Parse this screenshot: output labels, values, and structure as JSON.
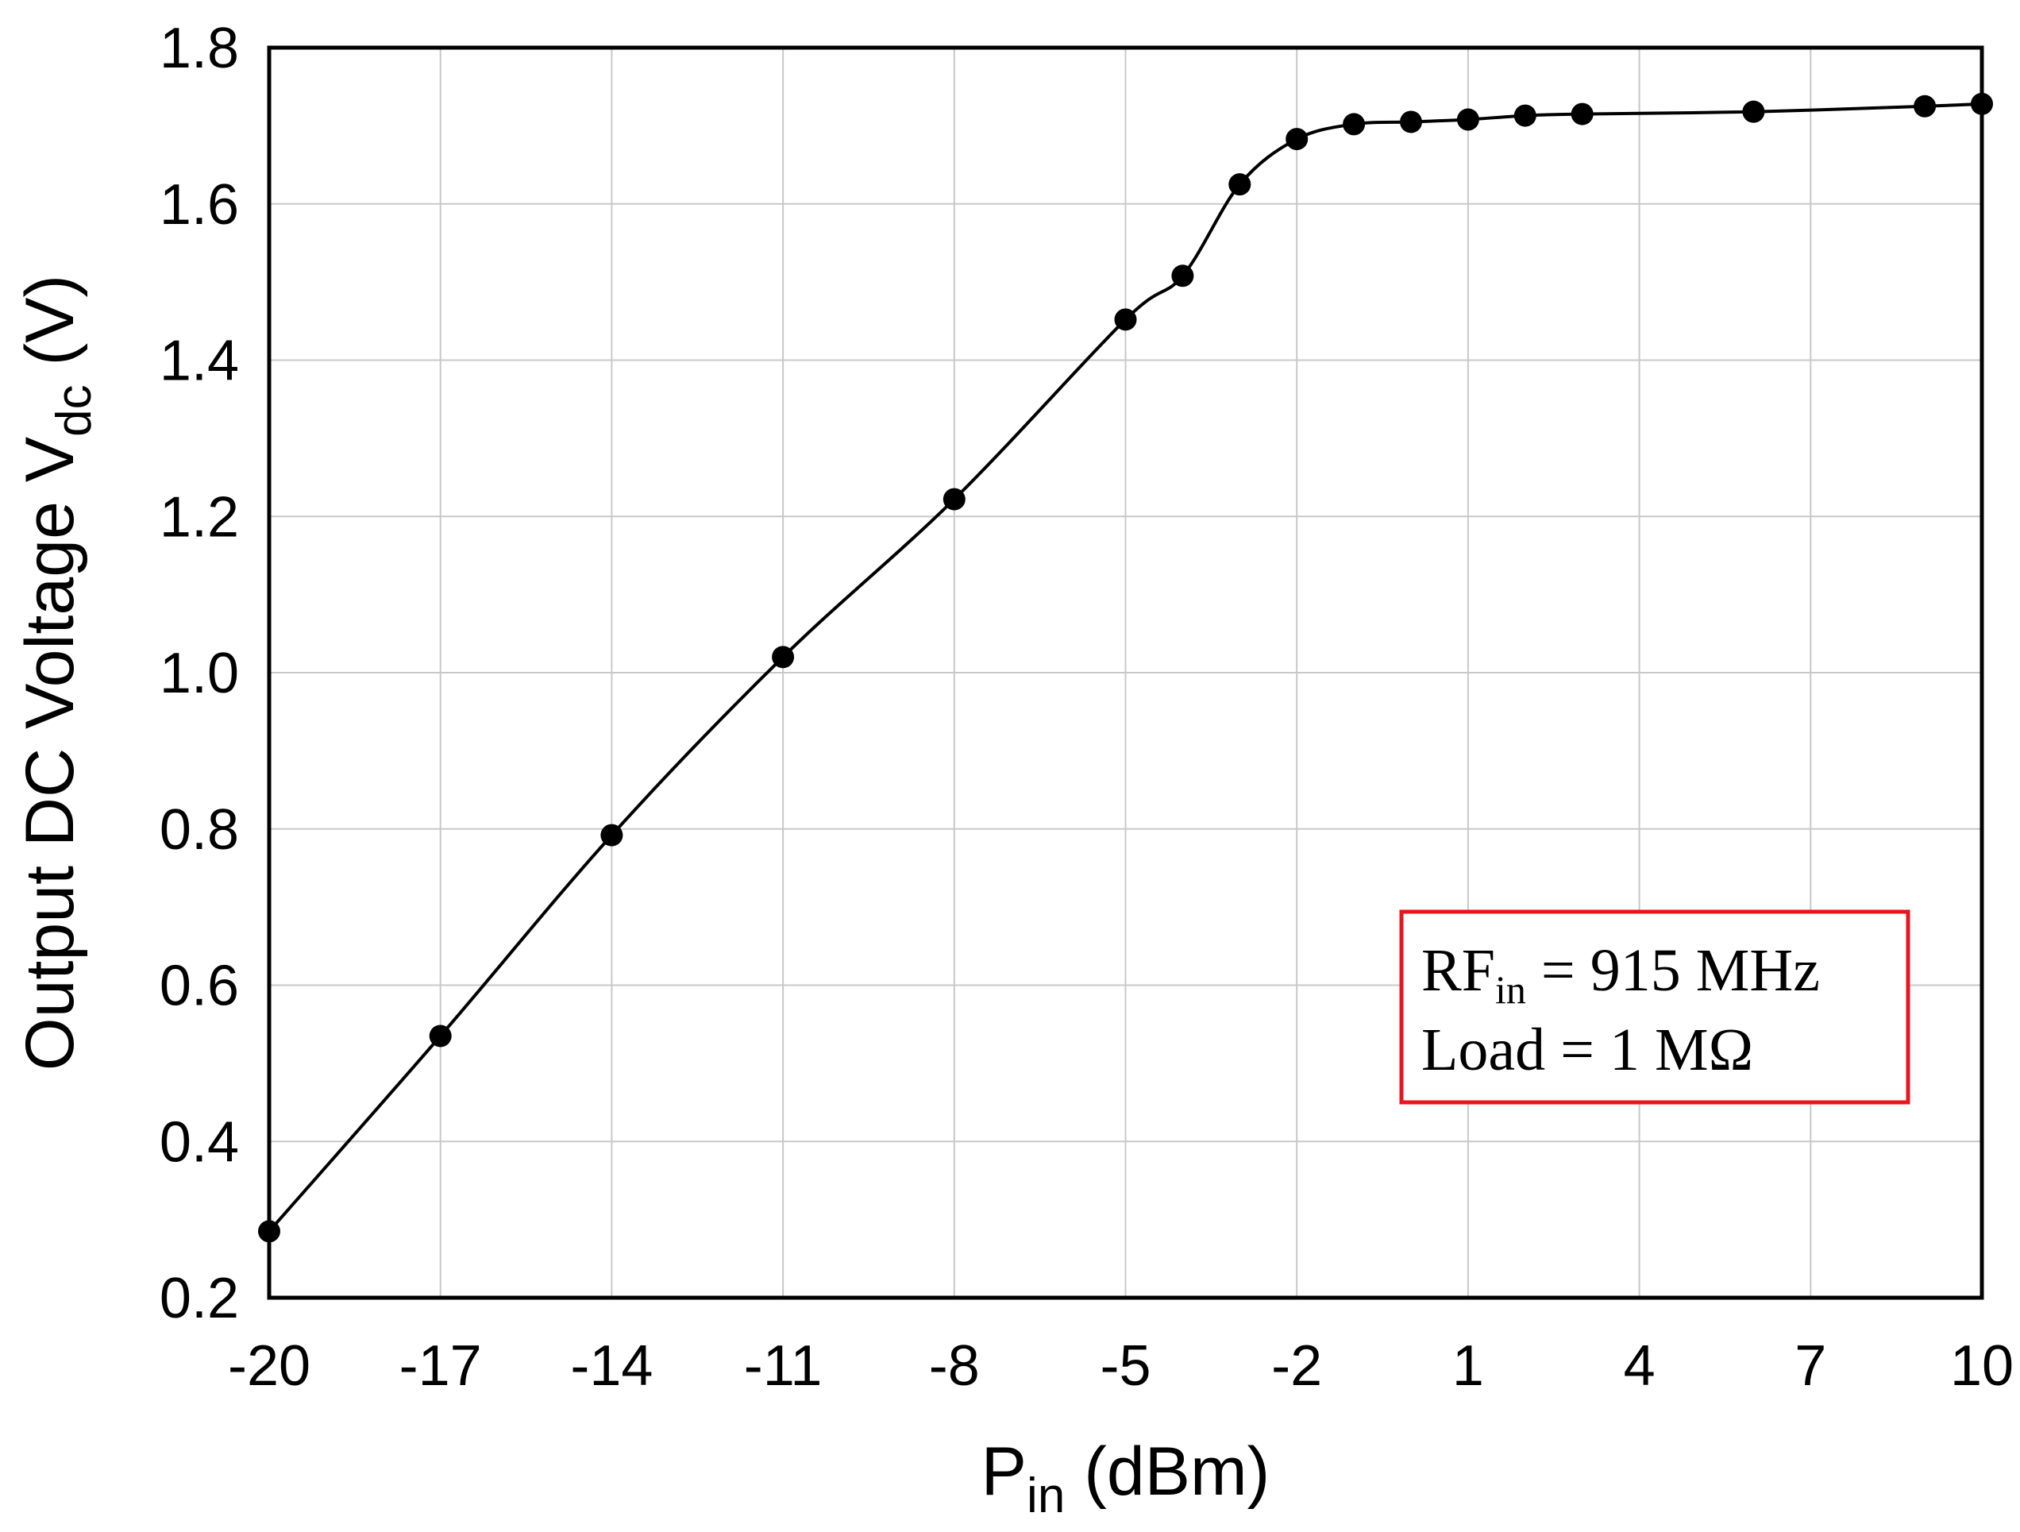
{
  "chart_data": {
    "type": "line",
    "xlabel": {
      "main": "P",
      "sub": "in",
      "rest": " (dBm)"
    },
    "ylabel": {
      "main": "Output DC Voltage V",
      "sub": "dc",
      "rest": " (V)"
    },
    "xlim": [
      -20,
      10
    ],
    "ylim": [
      0.2,
      1.8
    ],
    "x_ticks": [
      -20,
      -17,
      -14,
      -11,
      -8,
      -5,
      -2,
      1,
      4,
      7,
      10
    ],
    "x_tick_labels": [
      "-20",
      "-17",
      "-14",
      "-11",
      "-8",
      "-5",
      "-2",
      "1",
      "4",
      "7",
      "10"
    ],
    "y_ticks": [
      0.2,
      0.4,
      0.6,
      0.8,
      1.0,
      1.2,
      1.4,
      1.6,
      1.8
    ],
    "y_tick_labels": [
      "0.2",
      "0.4",
      "0.6",
      "0.8",
      "1.0",
      "1.2",
      "1.4",
      "1.6",
      "1.8"
    ],
    "grid": true,
    "series": [
      {
        "color": "#000000",
        "marker": "circle",
        "x": [
          -20,
          -17,
          -14,
          -11,
          -8,
          -5,
          -4,
          -3,
          -2,
          -1,
          0,
          1,
          2,
          3,
          6,
          9,
          10
        ],
        "y": [
          0.285,
          0.535,
          0.792,
          1.02,
          1.222,
          1.452,
          1.508,
          1.625,
          1.683,
          1.702,
          1.705,
          1.708,
          1.713,
          1.715,
          1.718,
          1.725,
          1.728
        ]
      }
    ],
    "annotation": {
      "line1": {
        "main": "RF",
        "sub": "in",
        "rest": " = 915 MHz"
      },
      "line2": "Load = 1 MΩ",
      "position": "bottom-right",
      "border_color": "#e8141e"
    }
  }
}
